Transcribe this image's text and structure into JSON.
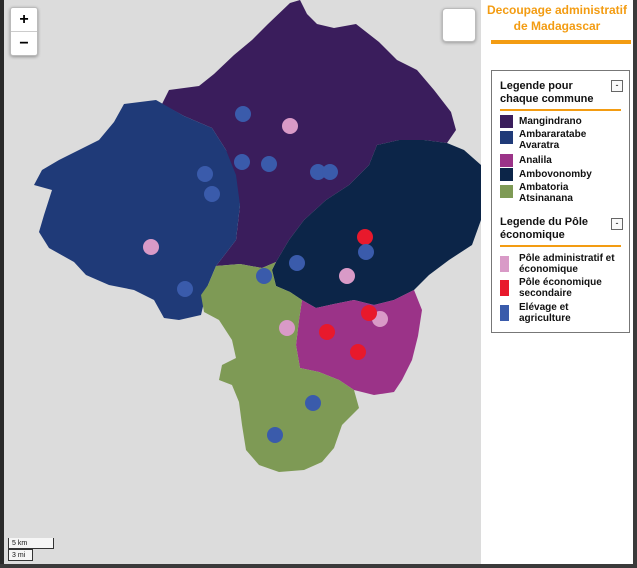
{
  "map": {
    "zoom_in": "+",
    "zoom_out": "−",
    "scale_km": "5 km",
    "scale_mi": "3 mi",
    "regions": [
      {
        "name": "Mangindrano",
        "color": "#3a1d5c"
      },
      {
        "name": "Ambararatabe Avaratra",
        "color": "#1f3a78"
      },
      {
        "name": "Analila",
        "color": "#9b3388"
      },
      {
        "name": "Ambovonomby",
        "color": "#0c2548"
      },
      {
        "name": "Ambatoria Atsinanana",
        "color": "#7e9a55"
      }
    ],
    "poles": {
      "admin": {
        "label": "Pôle administratif et économique",
        "color": "#d99ac7"
      },
      "secondary": {
        "label": "Pôle économique secondaire",
        "color": "#e8192c"
      },
      "agri": {
        "label": "Élevage et agriculture",
        "color": "#3a5bab"
      }
    }
  },
  "panel": {
    "title": "Decoupage administratif de Madagascar",
    "legend_communes_title": "Legende pour chaque commune",
    "legend_poles_title": "Legende du Pôle économique",
    "collapse_label": "-",
    "communes": [
      {
        "label": "Mangindrano",
        "color": "#3a1d5c"
      },
      {
        "label": "Ambararatabe Avaratra",
        "color": "#1f3a78"
      },
      {
        "label": "Analila",
        "color": "#9b3388"
      },
      {
        "label": "Ambovonomby",
        "color": "#0c2548"
      },
      {
        "label": "Ambatoria Atsinanana",
        "color": "#7e9a55"
      }
    ],
    "poles": [
      {
        "label": "Pôle administratif et économique",
        "color": "#d99ac7"
      },
      {
        "label": "Pôle économique secondaire",
        "color": "#e8192c"
      },
      {
        "label": "Elévage et agriculture",
        "color": "#3a5bab"
      }
    ]
  }
}
